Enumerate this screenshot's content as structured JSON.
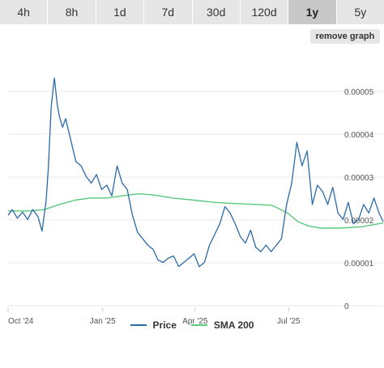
{
  "tabs": [
    {
      "label": "4h",
      "active": false
    },
    {
      "label": "8h",
      "active": false
    },
    {
      "label": "1d",
      "active": false
    },
    {
      "label": "7d",
      "active": false
    },
    {
      "label": "30d",
      "active": false
    },
    {
      "label": "120d",
      "active": false
    },
    {
      "label": "1y",
      "active": true
    },
    {
      "label": "5y",
      "active": false
    }
  ],
  "remove_graph_label": "remove graph",
  "colors": {
    "price": "#2a6aa8",
    "sma": "#59c97c",
    "gridline": "#e9e9e9",
    "active_tab": "#c8c8c8",
    "tab": "#e6e6e6"
  },
  "chart_data": {
    "type": "line",
    "title": "",
    "xlabel": "",
    "ylabel": "",
    "ylim": [
      0,
      6e-05
    ],
    "grid": true,
    "legend_position": "bottom",
    "y_tick_labels": [
      "0",
      "0.00001",
      "0.00002",
      "0.00003",
      "0.00004",
      "0.00005"
    ],
    "y_tick_values": [
      0,
      1e-05,
      2e-05,
      3e-05,
      4e-05,
      5e-05
    ],
    "x_tick_labels": [
      "Oct '24",
      "Jan '25",
      "Apr '25",
      "Jul '25"
    ],
    "x_tick_values": [
      "2024-10-01",
      "2025-01-01",
      "2025-04-01",
      "2025-07-01"
    ],
    "xlim": [
      "2024-10-01",
      "2025-10-01"
    ],
    "series": [
      {
        "name": "Price",
        "x": [
          "2024-10-01",
          "2024-10-05",
          "2024-10-10",
          "2024-10-15",
          "2024-10-20",
          "2024-10-25",
          "2024-10-30",
          "2024-11-03",
          "2024-11-07",
          "2024-11-09",
          "2024-11-12",
          "2024-11-15",
          "2024-11-18",
          "2024-11-20",
          "2024-11-23",
          "2024-11-26",
          "2024-12-01",
          "2024-12-06",
          "2024-12-11",
          "2024-12-16",
          "2024-12-21",
          "2024-12-26",
          "2024-12-31",
          "2025-01-05",
          "2025-01-10",
          "2025-01-15",
          "2025-01-20",
          "2025-01-25",
          "2025-01-30",
          "2025-02-04",
          "2025-02-09",
          "2025-02-14",
          "2025-02-19",
          "2025-02-24",
          "2025-03-01",
          "2025-03-06",
          "2025-03-11",
          "2025-03-16",
          "2025-03-21",
          "2025-03-26",
          "2025-03-31",
          "2025-04-05",
          "2025-04-10",
          "2025-04-15",
          "2025-04-20",
          "2025-04-25",
          "2025-04-30",
          "2025-05-05",
          "2025-05-10",
          "2025-05-15",
          "2025-05-20",
          "2025-05-25",
          "2025-05-30",
          "2025-06-04",
          "2025-06-09",
          "2025-06-14",
          "2025-06-19",
          "2025-06-24",
          "2025-06-29",
          "2025-07-04",
          "2025-07-09",
          "2025-07-14",
          "2025-07-19",
          "2025-07-24",
          "2025-07-29",
          "2025-08-03",
          "2025-08-08",
          "2025-08-13",
          "2025-08-18",
          "2025-08-23",
          "2025-08-28",
          "2025-09-02",
          "2025-09-07",
          "2025-09-12",
          "2025-09-17",
          "2025-09-22",
          "2025-09-27",
          "2025-10-01"
        ],
        "values": [
          2.15e-05,
          2.28e-05,
          2.08e-05,
          2.22e-05,
          2.05e-05,
          2.28e-05,
          2.12e-05,
          1.78e-05,
          2.48e-05,
          3.2e-05,
          4.7e-05,
          5.35e-05,
          4.7e-05,
          4.45e-05,
          4.2e-05,
          4.4e-05,
          3.9e-05,
          3.4e-05,
          3.3e-05,
          3.05e-05,
          2.9e-05,
          3.1e-05,
          2.75e-05,
          2.85e-05,
          2.6e-05,
          3.3e-05,
          2.9e-05,
          2.75e-05,
          2.15e-05,
          1.75e-05,
          1.6e-05,
          1.45e-05,
          1.35e-05,
          1.1e-05,
          1.05e-05,
          1.15e-05,
          1.2e-05,
          9.5e-06,
          1.05e-05,
          1.15e-05,
          1.25e-05,
          9.5e-06,
          1.05e-05,
          1.45e-05,
          1.7e-05,
          1.95e-05,
          2.35e-05,
          2.2e-05,
          1.95e-05,
          1.65e-05,
          1.5e-05,
          1.8e-05,
          1.4e-05,
          1.3e-05,
          1.45e-05,
          1.3e-05,
          1.45e-05,
          1.6e-05,
          2.4e-05,
          2.9e-05,
          3.85e-05,
          3.3e-05,
          3.65e-05,
          2.4e-05,
          2.85e-05,
          2.7e-05,
          2.4e-05,
          2.8e-05,
          2.2e-05,
          2.05e-05,
          2.45e-05,
          1.95e-05,
          2.05e-05,
          2.4e-05,
          2.2e-05,
          2.55e-05,
          2.2e-05,
          2e-05
        ]
      },
      {
        "name": "SMA 200",
        "x": [
          "2024-10-01",
          "2024-10-20",
          "2024-11-05",
          "2024-11-20",
          "2024-12-05",
          "2024-12-20",
          "2025-01-05",
          "2025-01-20",
          "2025-02-05",
          "2025-02-20",
          "2025-03-10",
          "2025-03-31",
          "2025-04-20",
          "2025-05-10",
          "2025-05-31",
          "2025-06-15",
          "2025-06-30",
          "2025-07-10",
          "2025-07-20",
          "2025-08-01",
          "2025-08-20",
          "2025-09-10",
          "2025-10-01"
        ],
        "values": [
          2.25e-05,
          2.25e-05,
          2.28e-05,
          2.4e-05,
          2.5e-05,
          2.55e-05,
          2.55e-05,
          2.6e-05,
          2.65e-05,
          2.62e-05,
          2.55e-05,
          2.5e-05,
          2.45e-05,
          2.42e-05,
          2.4e-05,
          2.38e-05,
          2.2e-05,
          2e-05,
          1.9e-05,
          1.85e-05,
          1.85e-05,
          1.88e-05,
          1.97e-05
        ]
      }
    ]
  }
}
